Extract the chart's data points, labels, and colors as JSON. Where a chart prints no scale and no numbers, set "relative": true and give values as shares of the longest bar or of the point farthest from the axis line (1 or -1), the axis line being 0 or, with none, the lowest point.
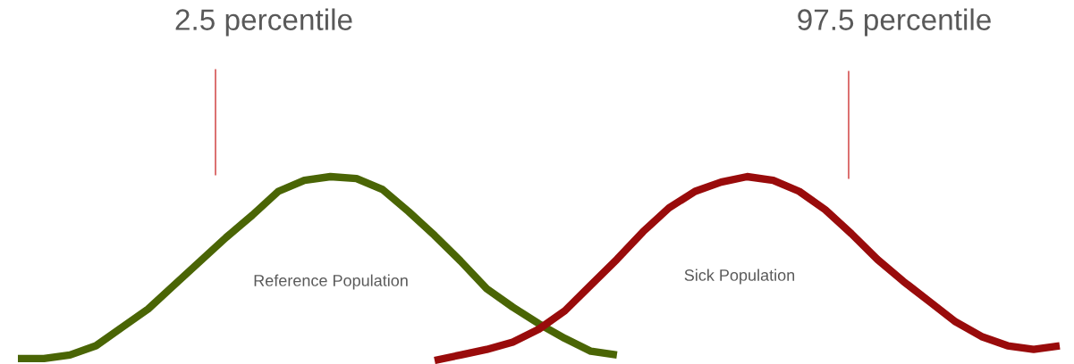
{
  "chart_data": {
    "type": "line",
    "relative": true,
    "marker": "none",
    "line_style": "solid",
    "categories": [
      null,
      null,
      null,
      null,
      null,
      null,
      null,
      null,
      null,
      null,
      null,
      null,
      null,
      null,
      null,
      null,
      null,
      null,
      null,
      null,
      null,
      null,
      null,
      null,
      null,
      null,
      null,
      null,
      null,
      null,
      null,
      null,
      null,
      null,
      null,
      null,
      null,
      null,
      null,
      null,
      null
    ],
    "series": [
      {
        "color": "#4a6505",
        "values": [
          0.01,
          0.01,
          0.03,
          0.08,
          0.18,
          0.28,
          0.41,
          0.54,
          0.67,
          0.79,
          0.92,
          0.98,
          1.0,
          0.99,
          0.93,
          0.81,
          0.68,
          0.54,
          0.39,
          0.29,
          0.2,
          0.12,
          0.05,
          0.03,
          null,
          null,
          null,
          null,
          null,
          null,
          null,
          null,
          null,
          null,
          null,
          null,
          null,
          null,
          null,
          null,
          null
        ]
      },
      {
        "color": "#990b0b",
        "values": [
          null,
          null,
          null,
          null,
          null,
          null,
          null,
          null,
          null,
          null,
          null,
          null,
          null,
          null,
          null,
          null,
          0.0,
          0.03,
          0.06,
          0.1,
          0.17,
          0.27,
          0.41,
          0.55,
          0.7,
          0.83,
          0.92,
          0.97,
          1.0,
          0.98,
          0.92,
          0.82,
          0.69,
          0.55,
          0.43,
          0.32,
          0.21,
          0.13,
          0.08,
          0.06,
          0.08
        ]
      }
    ],
    "annotations": [
      "2.5 percentile",
      "97.5 percentile",
      "Reference Population",
      "Sick Population"
    ]
  }
}
